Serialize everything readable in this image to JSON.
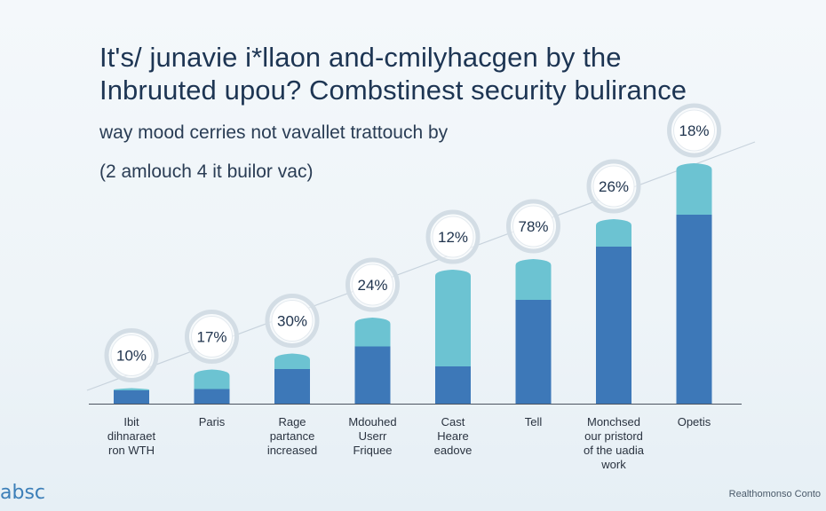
{
  "header": {
    "title_line1": "It's/ junavie i*llaon and-cmilyhacgen by the",
    "title_line2": "Inbruuted upou? Combstinest security bulirance",
    "subtitle_line1": "way mood cerries not vavallet trattouch by",
    "subtitle_line2": "(2 amlouch 4 it builor vac)"
  },
  "footer": {
    "brand": "absc",
    "credit": "Realthomonso Conto"
  },
  "colors": {
    "bar_dark": "#3d78b8",
    "bar_light": "#6cc3d2",
    "trend_line": "#c8d3dd",
    "circle_stroke": "#d3dde5"
  },
  "chart_data": {
    "type": "bar",
    "categories": [
      [
        "Ibit",
        "dihnaraet",
        "ron WTH"
      ],
      [
        "Paris"
      ],
      [
        "Rage",
        "partance",
        "increased"
      ],
      [
        "Mdouhed",
        "Userr",
        "Friquee"
      ],
      [
        "Cast",
        "Heare",
        "eadove"
      ],
      [
        "Tell"
      ],
      [
        "Monchsed",
        "our pristord",
        "of the uadia",
        "work"
      ],
      [
        "Opetis"
      ]
    ],
    "value_labels": [
      "10%",
      "17%",
      "30%",
      "24%",
      "12%",
      "78%",
      "26%",
      "18%"
    ],
    "stacked_segments": {
      "dark": [
        0.1,
        0.11,
        0.26,
        0.43,
        0.28,
        0.78,
        1.18,
        1.42
      ],
      "light": [
        0.01,
        0.14,
        0.11,
        0.21,
        0.72,
        0.3,
        0.2,
        0.38
      ]
    },
    "ylim": [
      0,
      2.0
    ],
    "trend_line": true,
    "legend": "none",
    "grid": false
  }
}
